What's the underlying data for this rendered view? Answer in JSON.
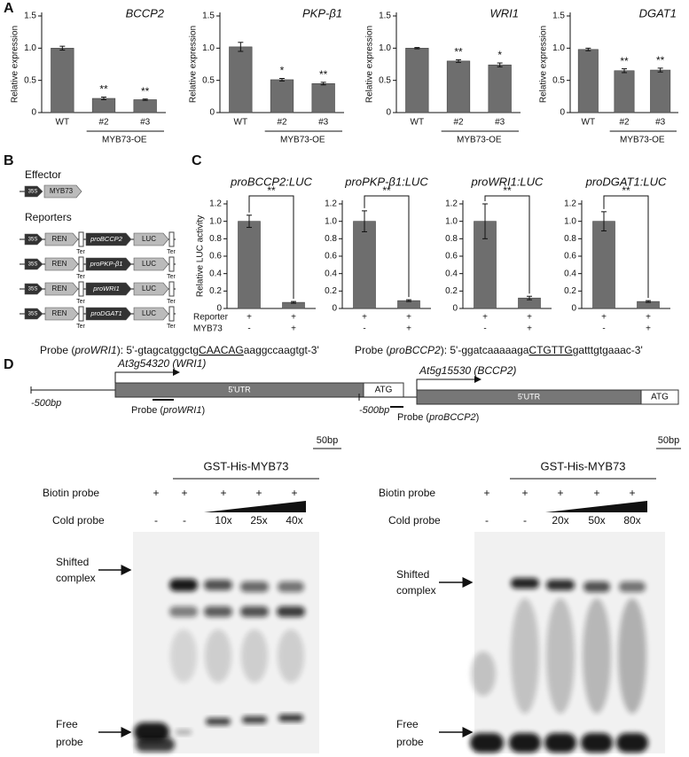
{
  "panels": [
    "A",
    "B",
    "C",
    "D"
  ],
  "chart_data": [
    {
      "type": "bar",
      "title": "BCCP2",
      "ylabel": "Relative expression",
      "categories": [
        "WT",
        "#2",
        "#3"
      ],
      "values": [
        1.0,
        0.22,
        0.2
      ],
      "errors": [
        0.03,
        0.02,
        0.01
      ],
      "annotations": [
        null,
        "**",
        "**"
      ],
      "group_label": "MYB73-OE",
      "color": "#6e6e6e",
      "ylim": [
        0,
        1.5
      ],
      "yticks": [
        0,
        0.5,
        {
          "value": 1,
          "label": "1.0"
        },
        1.5
      ]
    },
    {
      "type": "bar",
      "title": "PKP-β1",
      "ylabel": "Relative expression",
      "categories": [
        "WT",
        "#2",
        "#3"
      ],
      "values": [
        1.02,
        0.51,
        0.45
      ],
      "errors": [
        0.07,
        0.02,
        0.02
      ],
      "annotations": [
        null,
        "*",
        "**"
      ],
      "group_label": "MYB73-OE",
      "color": "#6e6e6e",
      "ylim": [
        0,
        1.5
      ],
      "yticks": [
        0,
        0.5,
        {
          "value": 1,
          "label": "1.0"
        },
        1.5
      ]
    },
    {
      "type": "bar",
      "title": "WRI1",
      "ylabel": "Relative expression",
      "categories": [
        "WT",
        "#2",
        "#3"
      ],
      "values": [
        1.0,
        0.8,
        0.74
      ],
      "errors": [
        0.01,
        0.02,
        0.03
      ],
      "annotations": [
        null,
        "**",
        "*"
      ],
      "group_label": "MYB73-OE",
      "color": "#6e6e6e",
      "ylim": [
        0,
        1.5
      ],
      "yticks": [
        0,
        0.5,
        {
          "value": 1,
          "label": "1.0"
        },
        1.5
      ]
    },
    {
      "type": "bar",
      "title": "DGAT1",
      "ylabel": "Relative expression",
      "categories": [
        "WT",
        "#2",
        "#3"
      ],
      "values": [
        0.98,
        0.65,
        0.66
      ],
      "errors": [
        0.02,
        0.03,
        0.03
      ],
      "annotations": [
        null,
        "**",
        "**"
      ],
      "group_label": "MYB73-OE",
      "color": "#6e6e6e",
      "ylim": [
        0,
        1.5
      ],
      "yticks": [
        0,
        0.5,
        {
          "value": 1,
          "label": "1.0"
        },
        1.5
      ]
    },
    {
      "type": "bar",
      "title": "proBCCP2:LUC",
      "ylabel": "Relative LUC activity",
      "values": [
        1.0,
        0.07
      ],
      "errors": [
        0.07,
        0.01
      ],
      "comparison": "**",
      "reporter": [
        "+",
        "+"
      ],
      "myb73": [
        "-",
        "+"
      ],
      "color": "#6e6e6e",
      "ylim": [
        0,
        1.2
      ],
      "yticks": [
        0,
        0.2,
        0.4,
        0.6,
        0.8,
        {
          "value": 1,
          "label": "1.0"
        },
        1.2
      ]
    },
    {
      "type": "bar",
      "title": "proPKP-β1:LUC",
      "values": [
        1.0,
        0.09
      ],
      "errors": [
        0.12,
        0.01
      ],
      "comparison": "**",
      "reporter": [
        "+",
        "+"
      ],
      "myb73": [
        "-",
        "+"
      ],
      "color": "#6e6e6e",
      "ylim": [
        0,
        1.2
      ],
      "yticks": [
        0,
        0.2,
        0.4,
        0.6,
        0.8,
        {
          "value": 1,
          "label": "1.0"
        },
        1.2
      ]
    },
    {
      "type": "bar",
      "title": "proWRI1:LUC",
      "values": [
        1.0,
        0.12
      ],
      "errors": [
        0.2,
        0.02
      ],
      "comparison": "**",
      "reporter": [
        "+",
        "+"
      ],
      "myb73": [
        "-",
        "+"
      ],
      "color": "#6e6e6e",
      "ylim": [
        0,
        1.2
      ],
      "yticks": [
        0,
        0.2,
        0.4,
        0.6,
        0.8,
        {
          "value": 1,
          "label": "1.0"
        },
        1.2
      ]
    },
    {
      "type": "bar",
      "title": "proDGAT1:LUC",
      "values": [
        1.0,
        0.08
      ],
      "errors": [
        0.11,
        0.01
      ],
      "comparison": "**",
      "reporter": [
        "+",
        "+"
      ],
      "myb73": [
        "-",
        "+"
      ],
      "color": "#6e6e6e",
      "ylim": [
        0,
        1.2
      ],
      "yticks": [
        0,
        0.2,
        0.4,
        0.6,
        0.8,
        {
          "value": 1,
          "label": "1.0"
        },
        1.2
      ]
    }
  ],
  "panel_b": {
    "effector_title": "Effector",
    "effector": [
      "35S",
      "MYB73"
    ],
    "reporters_title": "Reporters",
    "parts": {
      "p35s": "35S",
      "ren": "REN",
      "ter": "Ter",
      "luc": "LUC"
    },
    "promoters": [
      "proBCCP2",
      "proPKP-β1",
      "proWRI1",
      "proDGAT1"
    ]
  },
  "panel_c": {
    "conditions": [
      "Reporter",
      "MYB73"
    ]
  },
  "panel_d": {
    "left": {
      "probe": [
        {
          "text": "Probe ("
        },
        {
          "text": "proWRI1",
          "style": "italic"
        },
        {
          "text": "): 5'-gtagcatggctg"
        },
        {
          "text": "CAACAG",
          "style": "underline"
        },
        {
          "text": "aaggccaagtgt-3'"
        }
      ],
      "gene_name": "At3g54320 (WRI1)",
      "utr": "5'UTR",
      "atg": "ATG",
      "upstream": "-500bp",
      "probe_label": [
        {
          "text": "Probe ("
        },
        {
          "text": "proWRI1",
          "style": "italic"
        },
        {
          "text": ")"
        }
      ],
      "scale": "50bp",
      "protein": "GST-His-MYB73",
      "biotin_label": "Biotin probe",
      "biotin": [
        "+",
        "+",
        "+",
        "+",
        "+"
      ],
      "cold_label": "Cold probe",
      "cold": [
        "-",
        "-",
        "10x",
        "25x",
        "40x"
      ],
      "shifted": [
        "Shifted",
        "complex"
      ],
      "free": [
        "Free",
        "probe"
      ]
    },
    "right": {
      "probe": [
        {
          "text": "Probe ("
        },
        {
          "text": "proBCCP2",
          "style": "italic"
        },
        {
          "text": "): 5'-ggatcaaaaaga"
        },
        {
          "text": "CTGTTG",
          "style": "underline"
        },
        {
          "text": "gatttgtgaaac-3'"
        }
      ],
      "gene_name": "At5g15530 (BCCP2)",
      "utr": "5'UTR",
      "atg": "ATG",
      "upstream": "-500bp",
      "probe_label": [
        {
          "text": "Probe ("
        },
        {
          "text": "proBCCP2",
          "style": "italic"
        },
        {
          "text": ")"
        }
      ],
      "scale": "50bp",
      "protein": "GST-His-MYB73",
      "biotin_label": "Biotin probe",
      "biotin": [
        "+",
        "+",
        "+",
        "+",
        "+"
      ],
      "cold_label": "Cold probe",
      "cold": [
        "-",
        "-",
        "20x",
        "50x",
        "80x"
      ],
      "shifted": [
        "Shifted",
        "complex"
      ],
      "free": [
        "Free",
        "probe"
      ]
    }
  }
}
